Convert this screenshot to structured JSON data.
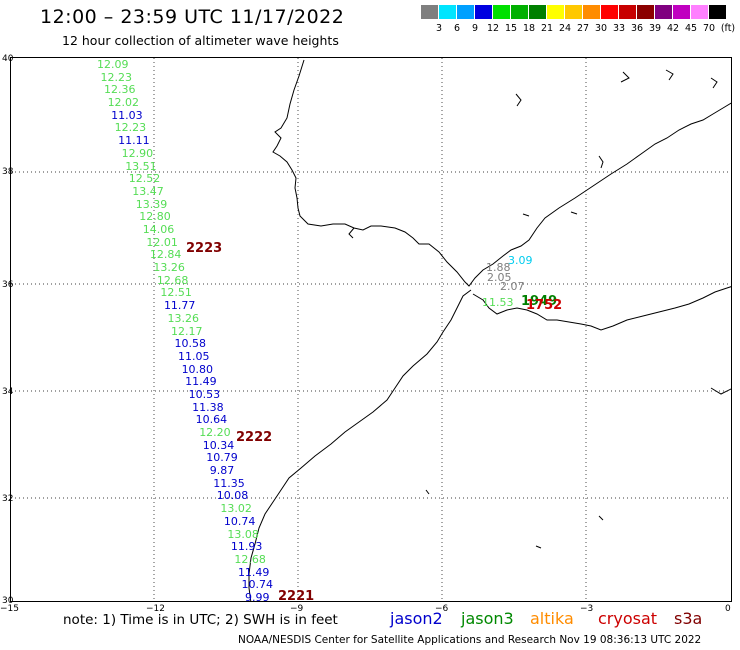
{
  "header": {
    "title": "12:00 – 23:59 UTC 11/17/2022",
    "subtitle": "12 hour collection of altimeter wave heights"
  },
  "legend": {
    "units": "(ft)",
    "bins": [
      {
        "label": "3",
        "color": "#7f7f7f"
      },
      {
        "label": "6",
        "color": "#00e5ff"
      },
      {
        "label": "9",
        "color": "#00a0ff"
      },
      {
        "label": "12",
        "color": "#0000e0"
      },
      {
        "label": "15",
        "color": "#00e000"
      },
      {
        "label": "18",
        "color": "#00b000"
      },
      {
        "label": "21",
        "color": "#008000"
      },
      {
        "label": "24",
        "color": "#ffff00"
      },
      {
        "label": "27",
        "color": "#ffc800"
      },
      {
        "label": "30",
        "color": "#ff8c00"
      },
      {
        "label": "33",
        "color": "#ff0000"
      },
      {
        "label": "36",
        "color": "#c80000"
      },
      {
        "label": "39",
        "color": "#8b0000"
      },
      {
        "label": "42",
        "color": "#800080"
      },
      {
        "label": "45",
        "color": "#c000c0"
      },
      {
        "label": "70",
        "color": "#ff80ff"
      },
      {
        "label": "",
        "color": "#000000"
      }
    ]
  },
  "axes": {
    "lat_ticks": [
      "40",
      "38",
      "36",
      "34",
      "32",
      "30"
    ],
    "lon_ticks": [
      "−15",
      "−12",
      "−9",
      "−6",
      "−3",
      "0"
    ]
  },
  "observations_jason3_west": [
    {
      "v": "12.09",
      "c": "#55dd55"
    },
    {
      "v": "12.23",
      "c": "#55dd55"
    },
    {
      "v": "12.36",
      "c": "#55dd55"
    },
    {
      "v": "12.02",
      "c": "#55dd55"
    },
    {
      "v": "11.03",
      "c": "#0000cc"
    },
    {
      "v": "12.23",
      "c": "#55dd55"
    },
    {
      "v": "11.11",
      "c": "#0000cc"
    },
    {
      "v": "12.90",
      "c": "#55dd55"
    },
    {
      "v": "13.51",
      "c": "#55dd55"
    },
    {
      "v": "12.52",
      "c": "#55dd55"
    },
    {
      "v": "13.47",
      "c": "#55dd55"
    },
    {
      "v": "13.39",
      "c": "#55dd55"
    },
    {
      "v": "12.80",
      "c": "#55dd55"
    },
    {
      "v": "14.06",
      "c": "#55dd55"
    },
    {
      "v": "12.01",
      "c": "#55dd55"
    },
    {
      "v": "12.84",
      "c": "#55dd55"
    },
    {
      "v": "13.26",
      "c": "#55dd55"
    },
    {
      "v": "12.68",
      "c": "#55dd55"
    },
    {
      "v": "12.51",
      "c": "#55dd55"
    },
    {
      "v": "11.77",
      "c": "#0000cc"
    },
    {
      "v": "13.26",
      "c": "#55dd55"
    },
    {
      "v": "12.17",
      "c": "#55dd55"
    },
    {
      "v": "10.58",
      "c": "#0000cc"
    },
    {
      "v": "11.05",
      "c": "#0000cc"
    },
    {
      "v": "10.80",
      "c": "#0000cc"
    },
    {
      "v": "11.49",
      "c": "#0000cc"
    },
    {
      "v": "10.53",
      "c": "#0000cc"
    },
    {
      "v": "11.38",
      "c": "#0000cc"
    },
    {
      "v": "10.64",
      "c": "#0000cc"
    },
    {
      "v": "12.20",
      "c": "#55dd55"
    },
    {
      "v": "10.34",
      "c": "#0000cc"
    },
    {
      "v": "10.79",
      "c": "#0000cc"
    },
    {
      "v": "9.87",
      "c": "#0000cc"
    },
    {
      "v": "11.35",
      "c": "#0000cc"
    },
    {
      "v": "10.08",
      "c": "#0000cc"
    },
    {
      "v": "13.02",
      "c": "#55dd55"
    },
    {
      "v": "10.74",
      "c": "#0000cc"
    },
    {
      "v": "13.08",
      "c": "#55dd55"
    },
    {
      "v": "11.93",
      "c": "#0000cc"
    },
    {
      "v": "12.68",
      "c": "#55dd55"
    },
    {
      "v": "11.49",
      "c": "#0000cc"
    },
    {
      "v": "10.74",
      "c": "#0000cc"
    },
    {
      "v": "9.99",
      "c": "#0000cc"
    }
  ],
  "pass_times": [
    {
      "t": "2223",
      "c": "#800000"
    },
    {
      "t": "2222",
      "c": "#800000"
    },
    {
      "t": "2221",
      "c": "#800000"
    },
    {
      "t": "1949",
      "c": "#008000"
    },
    {
      "t": "1752",
      "c": "#cc0000"
    }
  ],
  "observations_alboran": [
    {
      "v": "3.09",
      "c": "#00ccee"
    },
    {
      "v": "1.88",
      "c": "#7f7f7f"
    },
    {
      "v": "2.05",
      "c": "#7f7f7f"
    },
    {
      "v": "2.07",
      "c": "#7f7f7f"
    },
    {
      "v": "11.53",
      "c": "#55dd55"
    }
  ],
  "note": "note:  1) Time is in UTC;  2) SWH is in feet",
  "satellites": [
    {
      "name": "jason2",
      "color": "#0000cc"
    },
    {
      "name": "jason3",
      "color": "#008800"
    },
    {
      "name": "altika",
      "color": "#ff8c00"
    },
    {
      "name": "cryosat",
      "color": "#cc0000"
    },
    {
      "name": "s3a",
      "color": "#800000"
    }
  ],
  "credit": "NOAA/NESDIS Center for Satellite Applications and Research    Nov 19 08:36:13 UTC 2022"
}
